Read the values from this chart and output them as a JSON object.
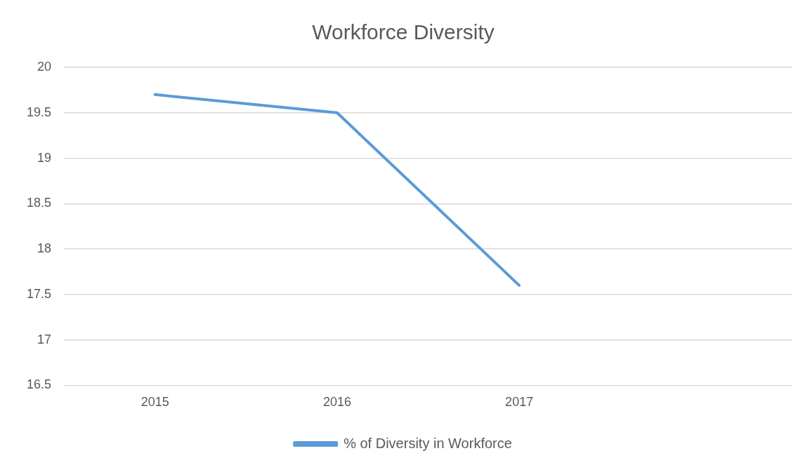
{
  "chart_data": {
    "type": "line",
    "title": "Workforce Diversity",
    "categories": [
      "2015",
      "2016",
      "2017",
      null
    ],
    "series": [
      {
        "name": "% of Diversity in Workforce",
        "color": "#5b9bd5",
        "values": [
          19.7,
          19.5,
          17.6,
          null
        ]
      }
    ],
    "ylim": [
      16.5,
      20
    ],
    "yticks": [
      16.5,
      17,
      17.5,
      18,
      18.5,
      19,
      19.5,
      20
    ],
    "grid": "y",
    "legend": "bottom",
    "marker": "none",
    "line_style": "solid"
  }
}
